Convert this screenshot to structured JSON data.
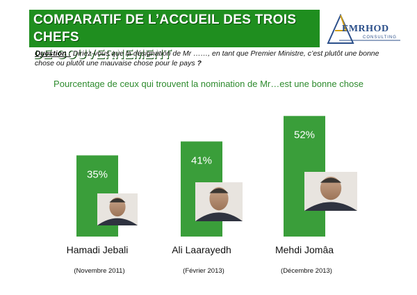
{
  "header": {
    "title_line1": "COMPARATIF  DE  L’ACCUEIL DES  TROIS CHEFS",
    "title_line2": "DE GOUVERNEMENT",
    "logo_name": "EMRHOD",
    "logo_sub": "CONSULTING"
  },
  "question": {
    "label": "Question :",
    "text": " Diriez-vous que la désignation de Mr ……, en tant que Premier Ministre, c’est plutôt une bonne chose ou plutôt une mauvaise chose pour le pays ",
    "mark": "?"
  },
  "colors": {
    "accent": "#3a9e3a",
    "title_band": "#1f8e1f"
  },
  "chart_data": {
    "type": "bar",
    "subtitle": "Pourcentage de ceux qui trouvent la nomination de Mr…est une bonne chose",
    "categories": [
      "Hamadi Jebali",
      "Ali Laarayedh",
      "Mehdi Jomâa"
    ],
    "dates": [
      "(Novembre 2011)",
      "(Février 2013)",
      "(Décembre 2013)"
    ],
    "values": [
      35,
      41,
      52
    ],
    "value_labels": [
      "35%",
      "41%",
      "52%"
    ],
    "ylim": [
      0,
      60
    ],
    "grid": false,
    "legend": "none"
  }
}
